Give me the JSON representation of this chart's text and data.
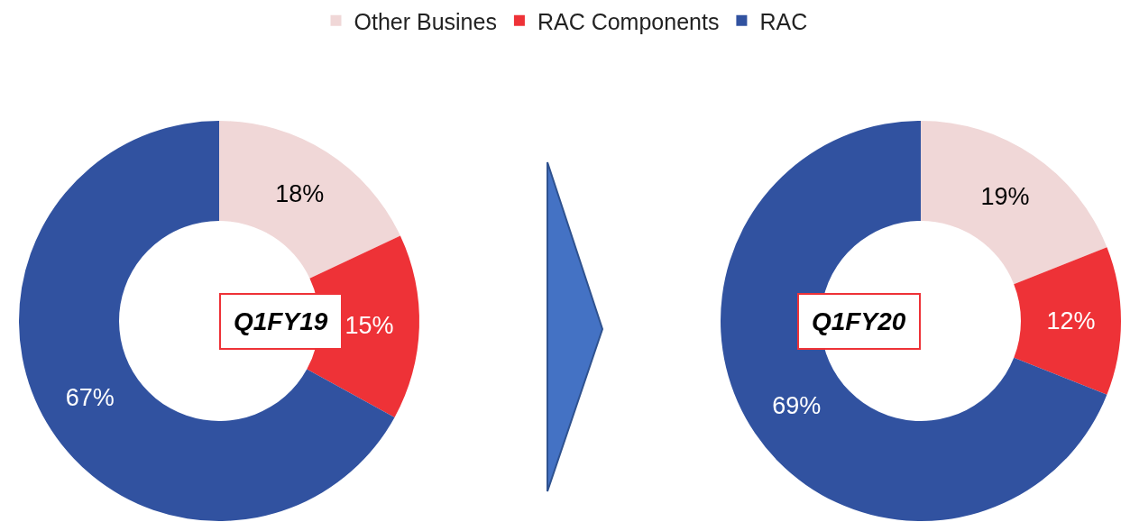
{
  "chart_data": [
    {
      "type": "donut",
      "categories": [
        "Other Busines",
        "RAC Components",
        "RAC"
      ],
      "values": [
        18,
        15,
        67
      ],
      "value_labels": [
        "18%",
        "15%",
        "67%"
      ],
      "colors": [
        "#f0d7d7",
        "#ee3237",
        "#3152a0"
      ],
      "annotations": [
        "Q1FY19"
      ],
      "legend": "top"
    },
    {
      "type": "donut",
      "categories": [
        null,
        null,
        null
      ],
      "values": [
        19,
        12,
        69
      ],
      "value_labels": [
        "19%",
        "12%",
        "69%"
      ],
      "colors": [
        "#f0d7d7",
        "#ee3237",
        "#3152a0"
      ],
      "annotations": [
        "Q1FY20"
      ]
    }
  ]
}
